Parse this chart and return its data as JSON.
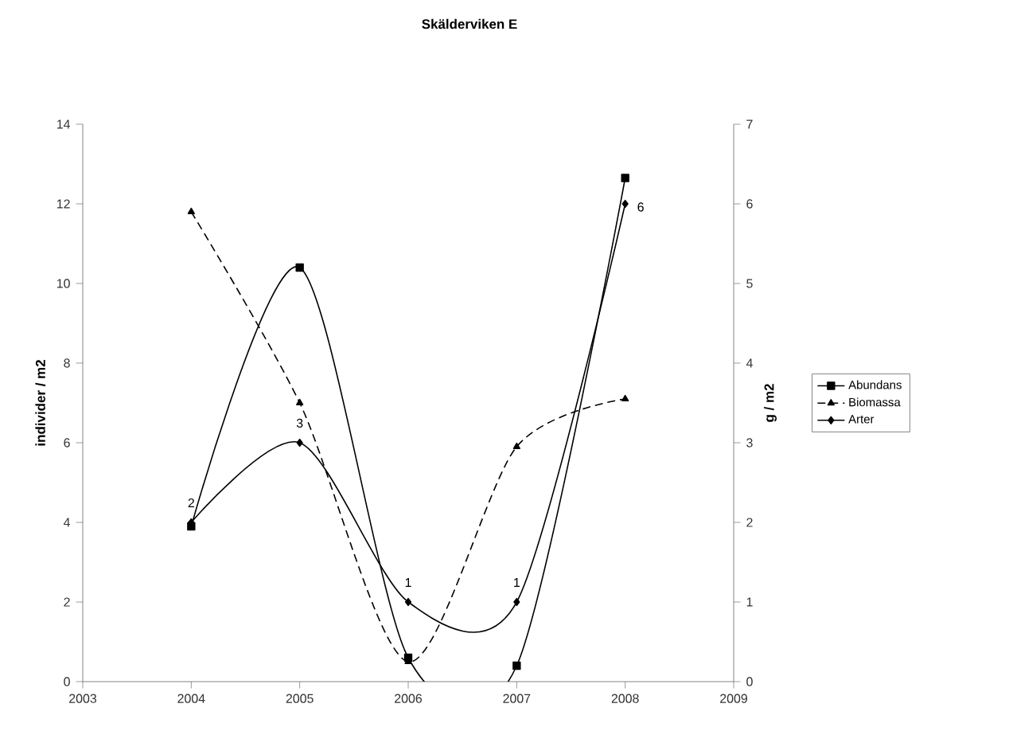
{
  "chart_data": {
    "type": "line",
    "title": "Skälderviken E",
    "ylabel": "individer / m2",
    "y2label": "g / m2",
    "x": [
      2004,
      2005,
      2006,
      2007,
      2008
    ],
    "xlim": [
      2003,
      2009
    ],
    "xticks": [
      2003,
      2004,
      2005,
      2006,
      2007,
      2008,
      2009
    ],
    "ylim": [
      0,
      14
    ],
    "yticks": [
      0,
      2,
      4,
      6,
      8,
      10,
      12,
      14
    ],
    "y2lim": [
      0,
      7
    ],
    "y2ticks": [
      0,
      1,
      2,
      3,
      4,
      5,
      6,
      7
    ],
    "legend": "right",
    "grid": false,
    "series": [
      {
        "name": "Abundans",
        "color": "#000000",
        "marker": "square",
        "line_style": "solid",
        "values": [
          3.9,
          10.4,
          0.6,
          0.4,
          12.65
        ]
      },
      {
        "name": "Biomassa",
        "color": "#000000",
        "marker": "triangle",
        "line_style": "dashed",
        "axis": "y2",
        "values": [
          5.9,
          3.5,
          0.25,
          2.95,
          3.55
        ]
      },
      {
        "name": "Arter",
        "color": "#000000",
        "marker": "diamond",
        "line_style": "solid",
        "axis": "y2",
        "values": [
          2,
          3,
          1,
          1,
          6
        ],
        "value_labels": [
          "2",
          "3",
          "1",
          "1",
          "6"
        ]
      }
    ]
  }
}
